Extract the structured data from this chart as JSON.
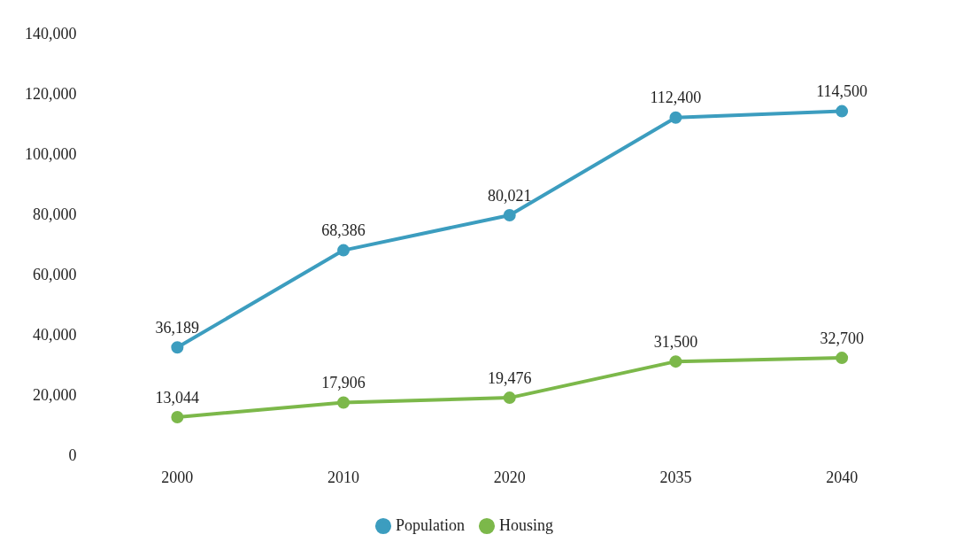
{
  "chart_data": {
    "type": "line",
    "categories": [
      "2000",
      "2010",
      "2020",
      "2035",
      "2040"
    ],
    "series": [
      {
        "name": "Population",
        "color": "#3c9dbf",
        "values": [
          36189,
          68386,
          80021,
          112400,
          114500
        ],
        "value_labels": [
          "36,189",
          "68,386",
          "80,021",
          "112,400",
          "114,500"
        ]
      },
      {
        "name": "Housing",
        "color": "#7cb84a",
        "values": [
          13044,
          17906,
          19476,
          31500,
          32700
        ],
        "value_labels": [
          "13,044",
          "17,906",
          "19,476",
          "31,500",
          "32,700"
        ]
      }
    ],
    "ylim": [
      0,
      140000
    ],
    "yticks": [
      0,
      {
        "value": 20000,
        "label": "20,000"
      },
      {
        "value": 40000,
        "label": "40,000"
      },
      {
        "value": 60000,
        "label": "60,000"
      },
      {
        "value": 80000,
        "label": "80,000"
      },
      {
        "value": 100000,
        "label": "100,000"
      },
      {
        "value": 120000,
        "label": "120,000"
      },
      {
        "value": 140000,
        "label": "140,000"
      }
    ],
    "grid": false,
    "legend": "bottom",
    "marker": "circle",
    "line_style": "solid"
  }
}
